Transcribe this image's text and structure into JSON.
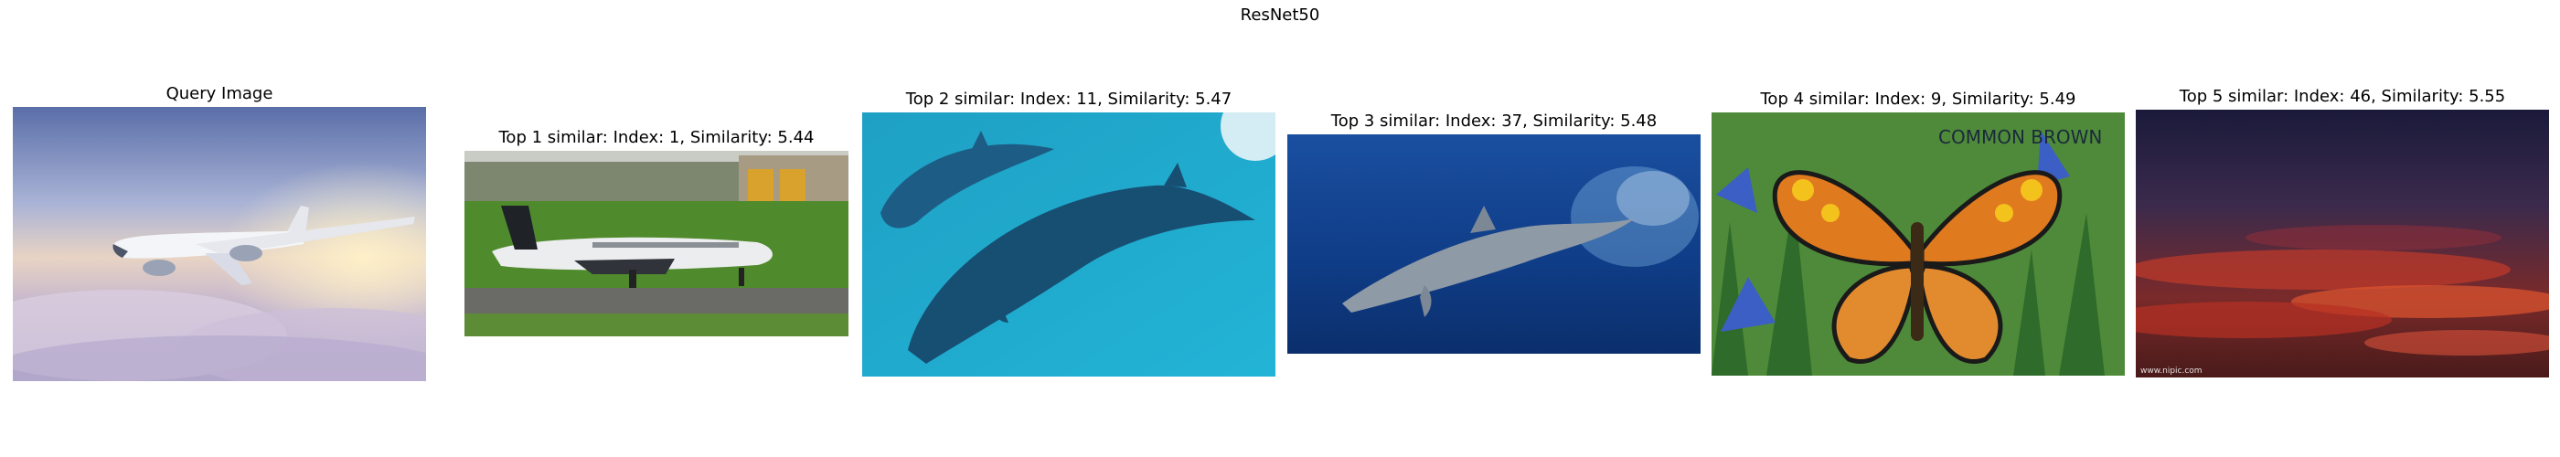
{
  "figure": {
    "title": "ResNet50"
  },
  "panels": [
    {
      "title": "Query Image",
      "image_subject": "airplane-in-sky"
    },
    {
      "title": "Top 1 similar: Index: 1, Similarity: 5.44",
      "image_subject": "jet-on-runway",
      "index": 1,
      "similarity": 5.44
    },
    {
      "title": "Top 2 similar: Index: 11, Similarity: 5.47",
      "image_subject": "dolphins-underwater",
      "index": 11,
      "similarity": 5.47
    },
    {
      "title": "Top 3 similar: Index: 37, Similarity: 5.48",
      "image_subject": "dolphin-jumping",
      "index": 37,
      "similarity": 5.48
    },
    {
      "title": "Top 4 similar: Index: 9, Similarity: 5.49",
      "image_subject": "butterfly-painting",
      "index": 9,
      "similarity": 5.49,
      "image_text": "COMMON BROWN"
    },
    {
      "title": "Top 5 similar: Index: 46, Similarity: 5.55",
      "image_subject": "sunset-sky",
      "index": 46,
      "similarity": 5.55,
      "image_text": "www.nipic.com"
    }
  ]
}
